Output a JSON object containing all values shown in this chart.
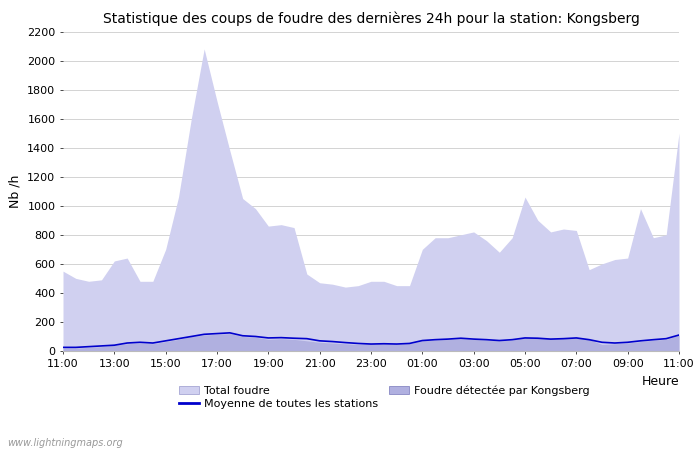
{
  "title": "Statistique des coups de foudre des dernières 24h pour la station: Kongsberg",
  "ylabel": "Nb /h",
  "xlabel": "Heure",
  "watermark": "www.lightningmaps.org",
  "ylim": [
    0,
    2200
  ],
  "yticks": [
    0,
    200,
    400,
    600,
    800,
    1000,
    1200,
    1400,
    1600,
    1800,
    2000,
    2200
  ],
  "x_labels": [
    "11:00",
    "13:00",
    "15:00",
    "17:00",
    "19:00",
    "21:00",
    "23:00",
    "01:00",
    "03:00",
    "05:00",
    "07:00",
    "09:00",
    "11:00"
  ],
  "color_total": "#d0d0f0",
  "color_kongsberg": "#b0b0e0",
  "color_moyenne": "#0000cc",
  "color_background": "#ffffff",
  "color_grid": "#cccccc",
  "total_foudre": [
    550,
    500,
    480,
    490,
    620,
    640,
    480,
    480,
    700,
    1060,
    1600,
    2080,
    1720,
    1380,
    1050,
    980,
    860,
    870,
    850,
    530,
    470,
    460,
    440,
    450,
    480,
    480,
    450,
    450,
    700,
    780,
    780,
    800,
    820,
    760,
    680,
    780,
    1060,
    900,
    820,
    840,
    830,
    560,
    600,
    630,
    640,
    980,
    780,
    800,
    1500
  ],
  "kongsberg": [
    20,
    20,
    25,
    30,
    40,
    50,
    55,
    50,
    65,
    80,
    100,
    110,
    115,
    120,
    100,
    95,
    80,
    85,
    80,
    70,
    60,
    55,
    50,
    45,
    50,
    50,
    45,
    50,
    70,
    75,
    80,
    85,
    80,
    75,
    70,
    75,
    95,
    90,
    85,
    85,
    95,
    80,
    45,
    50,
    55,
    65,
    75,
    80,
    110
  ],
  "moyenne": [
    25,
    25,
    30,
    35,
    40,
    55,
    60,
    55,
    70,
    85,
    100,
    115,
    120,
    125,
    105,
    100,
    90,
    92,
    88,
    85,
    70,
    65,
    58,
    52,
    48,
    50,
    48,
    52,
    72,
    78,
    82,
    88,
    82,
    78,
    72,
    78,
    90,
    88,
    82,
    85,
    90,
    78,
    60,
    55,
    60,
    70,
    78,
    85,
    110
  ],
  "n_points": 49,
  "n_ticks": 13,
  "legend_total_label": "Total foudre",
  "legend_moyenne_label": "Moyenne de toutes les stations",
  "legend_kongsberg_label": "Foudre détectée par Kongsberg"
}
